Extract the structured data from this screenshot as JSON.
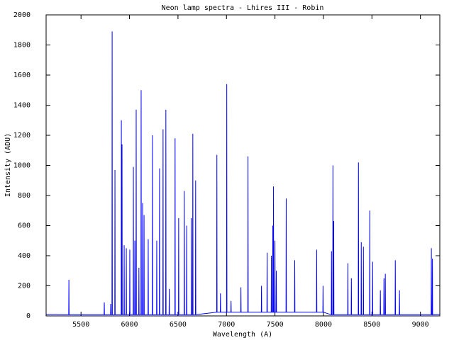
{
  "chart_data": {
    "type": "line",
    "title": "Neon lamp spectra - Lhires III - Robin",
    "x_label": "Wavelength (A)",
    "y_label": "Intensity (ADU)",
    "color": "#0000ff",
    "xlim": [
      5140,
      9200
    ],
    "xticks": [
      5500,
      6000,
      6500,
      7000,
      7500,
      8000,
      8500,
      9000
    ],
    "ylim": [
      0,
      2000
    ],
    "yticks": [
      0,
      200,
      400,
      600,
      800,
      1000,
      1200,
      1400,
      1600,
      1800,
      2000
    ],
    "grid": false,
    "x": [
      5140,
      5373,
      5375,
      5377,
      5738,
      5740,
      5742,
      5804,
      5806,
      5808,
      5819,
      5821,
      5823,
      5848,
      5850,
      5852,
      5914,
      5916,
      5918,
      5921,
      5923,
      5925,
      5943,
      5945,
      5947,
      5965,
      5967,
      5969,
      6001,
      6003,
      6005,
      6038,
      6040,
      6042,
      6053,
      6055,
      6057,
      6067,
      6069,
      6071,
      6095,
      6097,
      6099,
      6118,
      6120,
      6122,
      6133,
      6135,
      6137,
      6148,
      6150,
      6152,
      6191,
      6193,
      6195,
      6235,
      6237,
      6239,
      6279,
      6281,
      6283,
      6308,
      6310,
      6312,
      6344,
      6346,
      6348,
      6373,
      6375,
      6377,
      6408,
      6410,
      6412,
      6468,
      6470,
      6472,
      6505,
      6507,
      6509,
      6563,
      6565,
      6567,
      6588,
      6590,
      6592,
      6636,
      6638,
      6640,
      6651,
      6653,
      6655,
      6680,
      6682,
      6684,
      6899,
      6901,
      6903,
      6936,
      6938,
      6940,
      7001,
      7003,
      7005,
      7045,
      7047,
      7049,
      7147,
      7149,
      7151,
      7220,
      7222,
      7224,
      7359,
      7361,
      7363,
      7417,
      7419,
      7421,
      7461,
      7463,
      7465,
      7476,
      7478,
      7480,
      7483,
      7485,
      7487,
      7498,
      7500,
      7502,
      7512,
      7514,
      7516,
      7614,
      7616,
      7618,
      7702,
      7704,
      7706,
      7928,
      7930,
      7932,
      7994,
      7996,
      7998,
      8081,
      8083,
      8085,
      8096,
      8098,
      8100,
      8104,
      8106,
      8108,
      8250,
      8252,
      8254,
      8286,
      8288,
      8290,
      8359,
      8361,
      8363,
      8388,
      8390,
      8392,
      8410,
      8412,
      8414,
      8476,
      8478,
      8480,
      8505,
      8507,
      8509,
      8585,
      8587,
      8589,
      8622,
      8624,
      8626,
      8636,
      8638,
      8640,
      8739,
      8741,
      8743,
      8782,
      8784,
      8786,
      9111,
      9113,
      9115,
      9122,
      9124,
      9126,
      9200
    ],
    "values": [
      10,
      8,
      240,
      8,
      8,
      90,
      8,
      8,
      80,
      8,
      8,
      1890,
      8,
      8,
      970,
      8,
      8,
      1300,
      8,
      8,
      1140,
      8,
      8,
      470,
      8,
      8,
      450,
      8,
      8,
      440,
      8,
      8,
      990,
      8,
      8,
      500,
      8,
      8,
      1370,
      8,
      8,
      320,
      8,
      8,
      1500,
      8,
      8,
      750,
      8,
      8,
      670,
      8,
      8,
      510,
      8,
      8,
      1200,
      8,
      8,
      500,
      8,
      8,
      980,
      8,
      8,
      1240,
      8,
      8,
      1370,
      8,
      8,
      180,
      8,
      8,
      1180,
      8,
      8,
      650,
      8,
      8,
      830,
      8,
      8,
      600,
      8,
      8,
      650,
      8,
      8,
      1210,
      8,
      8,
      900,
      8,
      25,
      1070,
      25,
      25,
      150,
      25,
      25,
      1540,
      25,
      25,
      100,
      25,
      25,
      190,
      25,
      25,
      1060,
      25,
      25,
      200,
      25,
      25,
      420,
      25,
      25,
      400,
      25,
      25,
      600,
      25,
      25,
      860,
      25,
      25,
      500,
      25,
      25,
      300,
      25,
      25,
      780,
      25,
      25,
      370,
      25,
      25,
      440,
      25,
      25,
      200,
      25,
      8,
      430,
      8,
      8,
      1000,
      8,
      8,
      630,
      8,
      8,
      350,
      8,
      8,
      250,
      8,
      8,
      1020,
      8,
      8,
      490,
      8,
      8,
      460,
      8,
      8,
      700,
      8,
      8,
      360,
      8,
      8,
      170,
      8,
      8,
      250,
      8,
      8,
      280,
      8,
      8,
      370,
      8,
      8,
      170,
      8,
      8,
      450,
      8,
      8,
      380,
      8,
      10
    ]
  }
}
